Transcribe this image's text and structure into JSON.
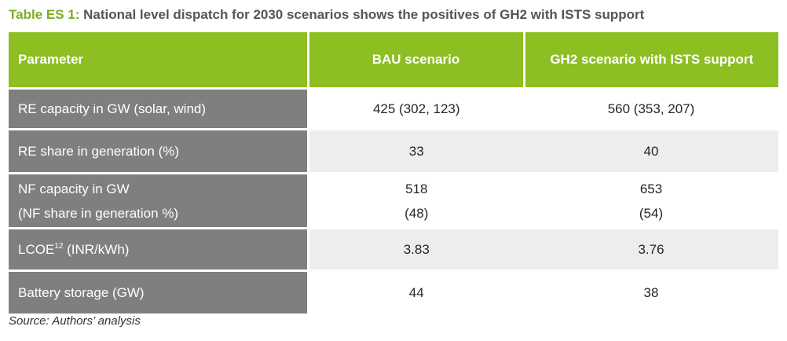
{
  "caption": {
    "label": "Table ES 1:",
    "text": " National level dispatch for 2030 scenarios shows the positives of GH2 with ISTS support"
  },
  "table": {
    "headers": [
      "Parameter",
      "BAU scenario",
      "GH2 scenario with ISTS support"
    ],
    "rows": [
      {
        "param": "RE capacity in GW (solar, wind)",
        "bau": "425 (302, 123)",
        "gh2": "560 (353, 207)"
      },
      {
        "param": "RE share in generation (%)",
        "bau": "33",
        "gh2": "40"
      },
      {
        "param_line1": "NF capacity in GW",
        "param_line2": "(NF share in generation %)",
        "bau_line1": "518",
        "bau_line2": "(48)",
        "gh2_line1": "653",
        "gh2_line2": "(54)"
      },
      {
        "param_pre": "LCOE",
        "param_sup": "12",
        "param_post": " (INR/kWh)",
        "bau": "3.83",
        "gh2": "3.76"
      },
      {
        "param": "Battery storage (GW)",
        "bau": "44",
        "gh2": "38"
      }
    ]
  },
  "source": "Source: Authors’ analysis",
  "colors": {
    "header_green": "#8dbe22",
    "param_gray": "#7f7f7f",
    "shade": "#ededed",
    "caption_label": "#7cae1f"
  }
}
